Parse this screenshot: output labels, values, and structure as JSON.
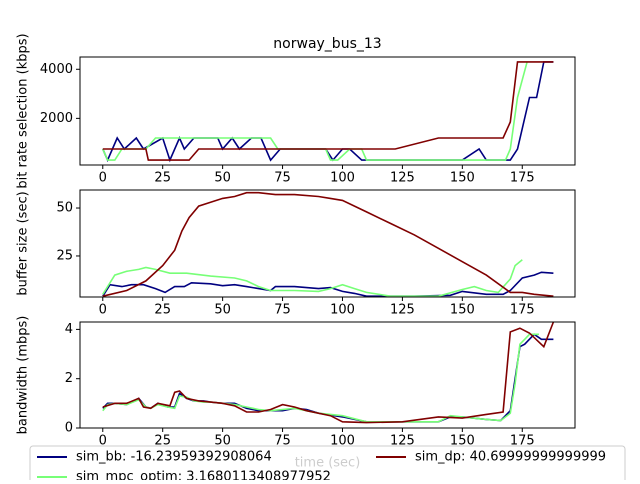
{
  "chart_data": [
    {
      "type": "line",
      "title": "norway_bus_13",
      "ylabel": "bit rate selection (kbps)",
      "xlim": [
        -9.5,
        197
      ],
      "ylim": [
        100,
        4500
      ],
      "xticks": [
        0,
        25,
        50,
        75,
        100,
        125,
        150,
        175
      ],
      "yticks": [
        2000,
        4000
      ],
      "series": [
        {
          "name": "sim_bb: -16.23959392908064",
          "color": "#000080",
          "x": [
            0,
            2,
            6,
            9,
            14,
            17,
            25,
            28,
            32,
            34,
            38,
            48,
            50,
            54,
            57,
            62,
            66,
            70,
            74,
            93,
            96,
            100,
            103,
            108,
            150,
            157,
            160,
            170,
            173,
            178,
            181,
            184,
            188
          ],
          "values": [
            750,
            300,
            1200,
            750,
            1200,
            750,
            1200,
            300,
            1200,
            750,
            1200,
            1200,
            750,
            1200,
            750,
            1200,
            1200,
            300,
            750,
            750,
            300,
            750,
            750,
            300,
            300,
            750,
            300,
            300,
            750,
            2850,
            2850,
            4300,
            4300
          ]
        },
        {
          "name": "sim_mpc_optim: 3.1680113408977952",
          "color": "#77ff77",
          "x": [
            0,
            2,
            5,
            8,
            18,
            22,
            70,
            73,
            93,
            95,
            98,
            103,
            108,
            110,
            168,
            170,
            173,
            177
          ],
          "values": [
            750,
            300,
            300,
            750,
            750,
            1200,
            1200,
            750,
            750,
            300,
            300,
            750,
            750,
            300,
            300,
            750,
            2850,
            4300
          ]
        },
        {
          "name": "sim_dp: 40.69999999999999",
          "color": "#800000",
          "x": [
            0,
            18,
            19,
            36,
            40,
            122,
            140,
            167,
            170,
            173,
            188
          ],
          "values": [
            750,
            750,
            300,
            300,
            750,
            750,
            1200,
            1200,
            1850,
            4300,
            4300
          ]
        }
      ]
    },
    {
      "type": "line",
      "ylabel": "buffer size (sec)",
      "xlim": [
        -9.5,
        197
      ],
      "ylim": [
        3.6,
        59.4
      ],
      "xticks": [
        0,
        25,
        50,
        75,
        100,
        125,
        150,
        175
      ],
      "yticks": [
        25,
        50
      ],
      "series": [
        {
          "color": "#000080",
          "x": [
            0,
            3,
            8,
            12,
            17,
            22,
            26,
            30,
            34,
            37,
            45,
            50,
            55,
            60,
            65,
            70,
            72,
            80,
            85,
            90,
            95,
            100,
            105,
            110,
            120,
            130,
            145,
            150,
            160,
            167,
            170,
            175,
            180,
            183,
            188
          ],
          "values": [
            4,
            10,
            9,
            10,
            10,
            8,
            6,
            9,
            9,
            11,
            10.5,
            9.5,
            10,
            9,
            8,
            7,
            9,
            9,
            8.5,
            8,
            8.5,
            6.5,
            5.5,
            4,
            4,
            4,
            4.5,
            6.5,
            5,
            5,
            7,
            13.5,
            15,
            16.5,
            16
          ]
        },
        {
          "color": "#77ff77",
          "x": [
            0,
            5,
            10,
            15,
            18,
            22,
            28,
            35,
            45,
            55,
            60,
            65,
            70,
            80,
            90,
            95,
            100,
            105,
            110,
            120,
            140,
            150,
            155,
            160,
            165,
            170,
            172,
            175
          ],
          "values": [
            5,
            15,
            17,
            18,
            19,
            18,
            16,
            16,
            14.5,
            13.5,
            12,
            9,
            7,
            7,
            6.5,
            8,
            10,
            8,
            6,
            4,
            4,
            7.5,
            9,
            7,
            6,
            13,
            20,
            23
          ]
        },
        {
          "color": "#800000",
          "x": [
            0,
            10,
            18,
            25,
            30,
            33,
            36,
            40,
            45,
            50,
            55,
            60,
            65,
            72,
            80,
            90,
            95,
            100,
            110,
            120,
            130,
            140,
            150,
            160,
            170,
            175,
            180,
            188
          ],
          "values": [
            4,
            7,
            12,
            20,
            28,
            38,
            45,
            51,
            53,
            55,
            56,
            58,
            58,
            57,
            57,
            56,
            55,
            54,
            48,
            42,
            36,
            29,
            22,
            15,
            6,
            6,
            5,
            4
          ]
        }
      ]
    },
    {
      "type": "line",
      "ylabel": "bandwidth (mbps)",
      "xlabel": "time (sec)",
      "xlim": [
        -9.5,
        197
      ],
      "ylim": [
        0,
        4.3
      ],
      "xticks": [
        0,
        25,
        50,
        75,
        100,
        125,
        150,
        175
      ],
      "yticks": [
        0,
        2,
        4
      ],
      "series": [
        {
          "color": "#000080",
          "x": [
            0,
            2,
            5,
            10,
            15,
            18,
            20,
            23,
            27,
            30,
            32,
            35,
            38,
            42,
            45,
            50,
            55,
            60,
            65,
            70,
            75,
            80,
            85,
            90,
            100,
            110,
            125,
            140,
            145,
            150,
            160,
            166,
            170,
            172,
            174,
            176,
            180,
            183,
            188
          ],
          "values": [
            0.8,
            1.0,
            1.0,
            0.95,
            1.2,
            0.85,
            0.8,
            1.0,
            0.85,
            0.85,
            1.4,
            1.2,
            1.1,
            1.1,
            1.05,
            1.0,
            1.0,
            0.8,
            0.7,
            0.7,
            0.7,
            0.8,
            0.75,
            0.6,
            0.45,
            0.25,
            0.25,
            0.25,
            0.45,
            0.45,
            0.35,
            0.3,
            0.7,
            2.0,
            3.3,
            3.4,
            3.8,
            3.6,
            3.6
          ]
        },
        {
          "color": "#77ff77",
          "x": [
            0,
            2,
            5,
            10,
            15,
            18,
            20,
            23,
            27,
            30,
            32,
            35,
            38,
            42,
            45,
            50,
            55,
            60,
            65,
            70,
            75,
            80,
            85,
            90,
            100,
            110,
            125,
            140,
            145,
            150,
            160,
            166,
            170,
            172,
            174,
            176,
            178,
            182
          ],
          "values": [
            0.7,
            0.95,
            1.0,
            0.95,
            1.15,
            0.85,
            0.8,
            0.95,
            0.85,
            0.8,
            1.3,
            1.25,
            1.1,
            1.05,
            1.05,
            1.0,
            0.95,
            0.85,
            0.75,
            0.7,
            0.75,
            0.8,
            0.7,
            0.6,
            0.5,
            0.25,
            0.25,
            0.25,
            0.5,
            0.45,
            0.35,
            0.3,
            0.6,
            1.8,
            3.4,
            3.6,
            3.8,
            3.8
          ]
        },
        {
          "color": "#800000",
          "x": [
            0,
            5,
            10,
            15,
            17,
            20,
            23,
            28,
            30,
            32,
            35,
            40,
            45,
            50,
            55,
            60,
            65,
            70,
            75,
            80,
            85,
            95,
            100,
            110,
            125,
            140,
            150,
            160,
            167,
            170,
            174,
            178,
            184,
            188
          ],
          "values": [
            0.85,
            1.0,
            1.0,
            1.2,
            0.85,
            0.8,
            1.0,
            0.9,
            1.45,
            1.5,
            1.2,
            1.1,
            1.05,
            1.0,
            0.9,
            0.65,
            0.65,
            0.75,
            0.95,
            0.85,
            0.7,
            0.5,
            0.25,
            0.22,
            0.25,
            0.45,
            0.4,
            0.55,
            0.65,
            3.9,
            4.05,
            3.85,
            3.3,
            4.3
          ]
        }
      ]
    }
  ]
}
